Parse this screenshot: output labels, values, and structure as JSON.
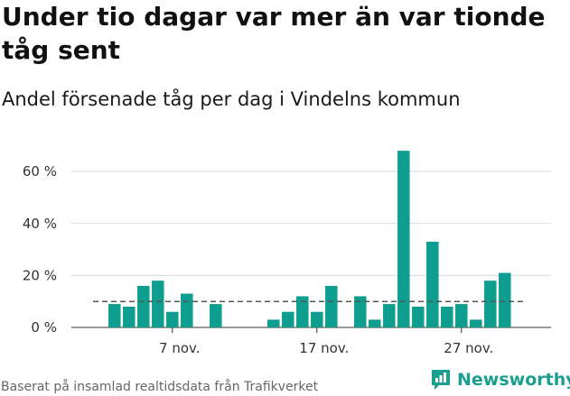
{
  "title": "Under tio dagar var mer än var tionde tåg sent",
  "subtitle": "Andel försenade tåg per dag i Vindelns kommun",
  "source": "Baserat på insamlad realtidsdata från Trafikverket",
  "brand": {
    "name": "Newsworthy",
    "icon": "newsworthy-logo-icon",
    "color": "#1a9e90"
  },
  "colors": {
    "bar": "#0e9e90",
    "reference": "#555555",
    "grid": "#d9d9d9"
  },
  "chart_data": {
    "type": "bar",
    "title": "Under tio dagar var mer än var tionde tåg sent",
    "subtitle": "Andel försenade tåg per dag i Vindelns kommun",
    "xlabel": "",
    "ylabel": "",
    "x_ticks": [
      {
        "label": "7 nov.",
        "day": 7
      },
      {
        "label": "17 nov.",
        "day": 17
      },
      {
        "label": "27 nov.",
        "day": 27
      }
    ],
    "y_ticks": [
      {
        "label": "0 %",
        "value": 0
      },
      {
        "label": "20 %",
        "value": 20
      },
      {
        "label": "40 %",
        "value": 40
      },
      {
        "label": "60 %",
        "value": 60
      }
    ],
    "ylim": [
      0,
      67
    ],
    "xlim": [
      1,
      31
    ],
    "grid": true,
    "reference_line": 10,
    "days": [
      3,
      4,
      5,
      6,
      7,
      8,
      10,
      14,
      15,
      16,
      17,
      18,
      20,
      21,
      22,
      23,
      24,
      25,
      26,
      27,
      28,
      29,
      30
    ],
    "values": [
      9,
      8,
      16,
      18,
      6,
      13,
      9,
      3,
      6,
      12,
      6,
      16,
      12,
      3,
      9,
      68,
      8,
      33,
      8,
      9,
      3,
      18,
      21
    ]
  }
}
